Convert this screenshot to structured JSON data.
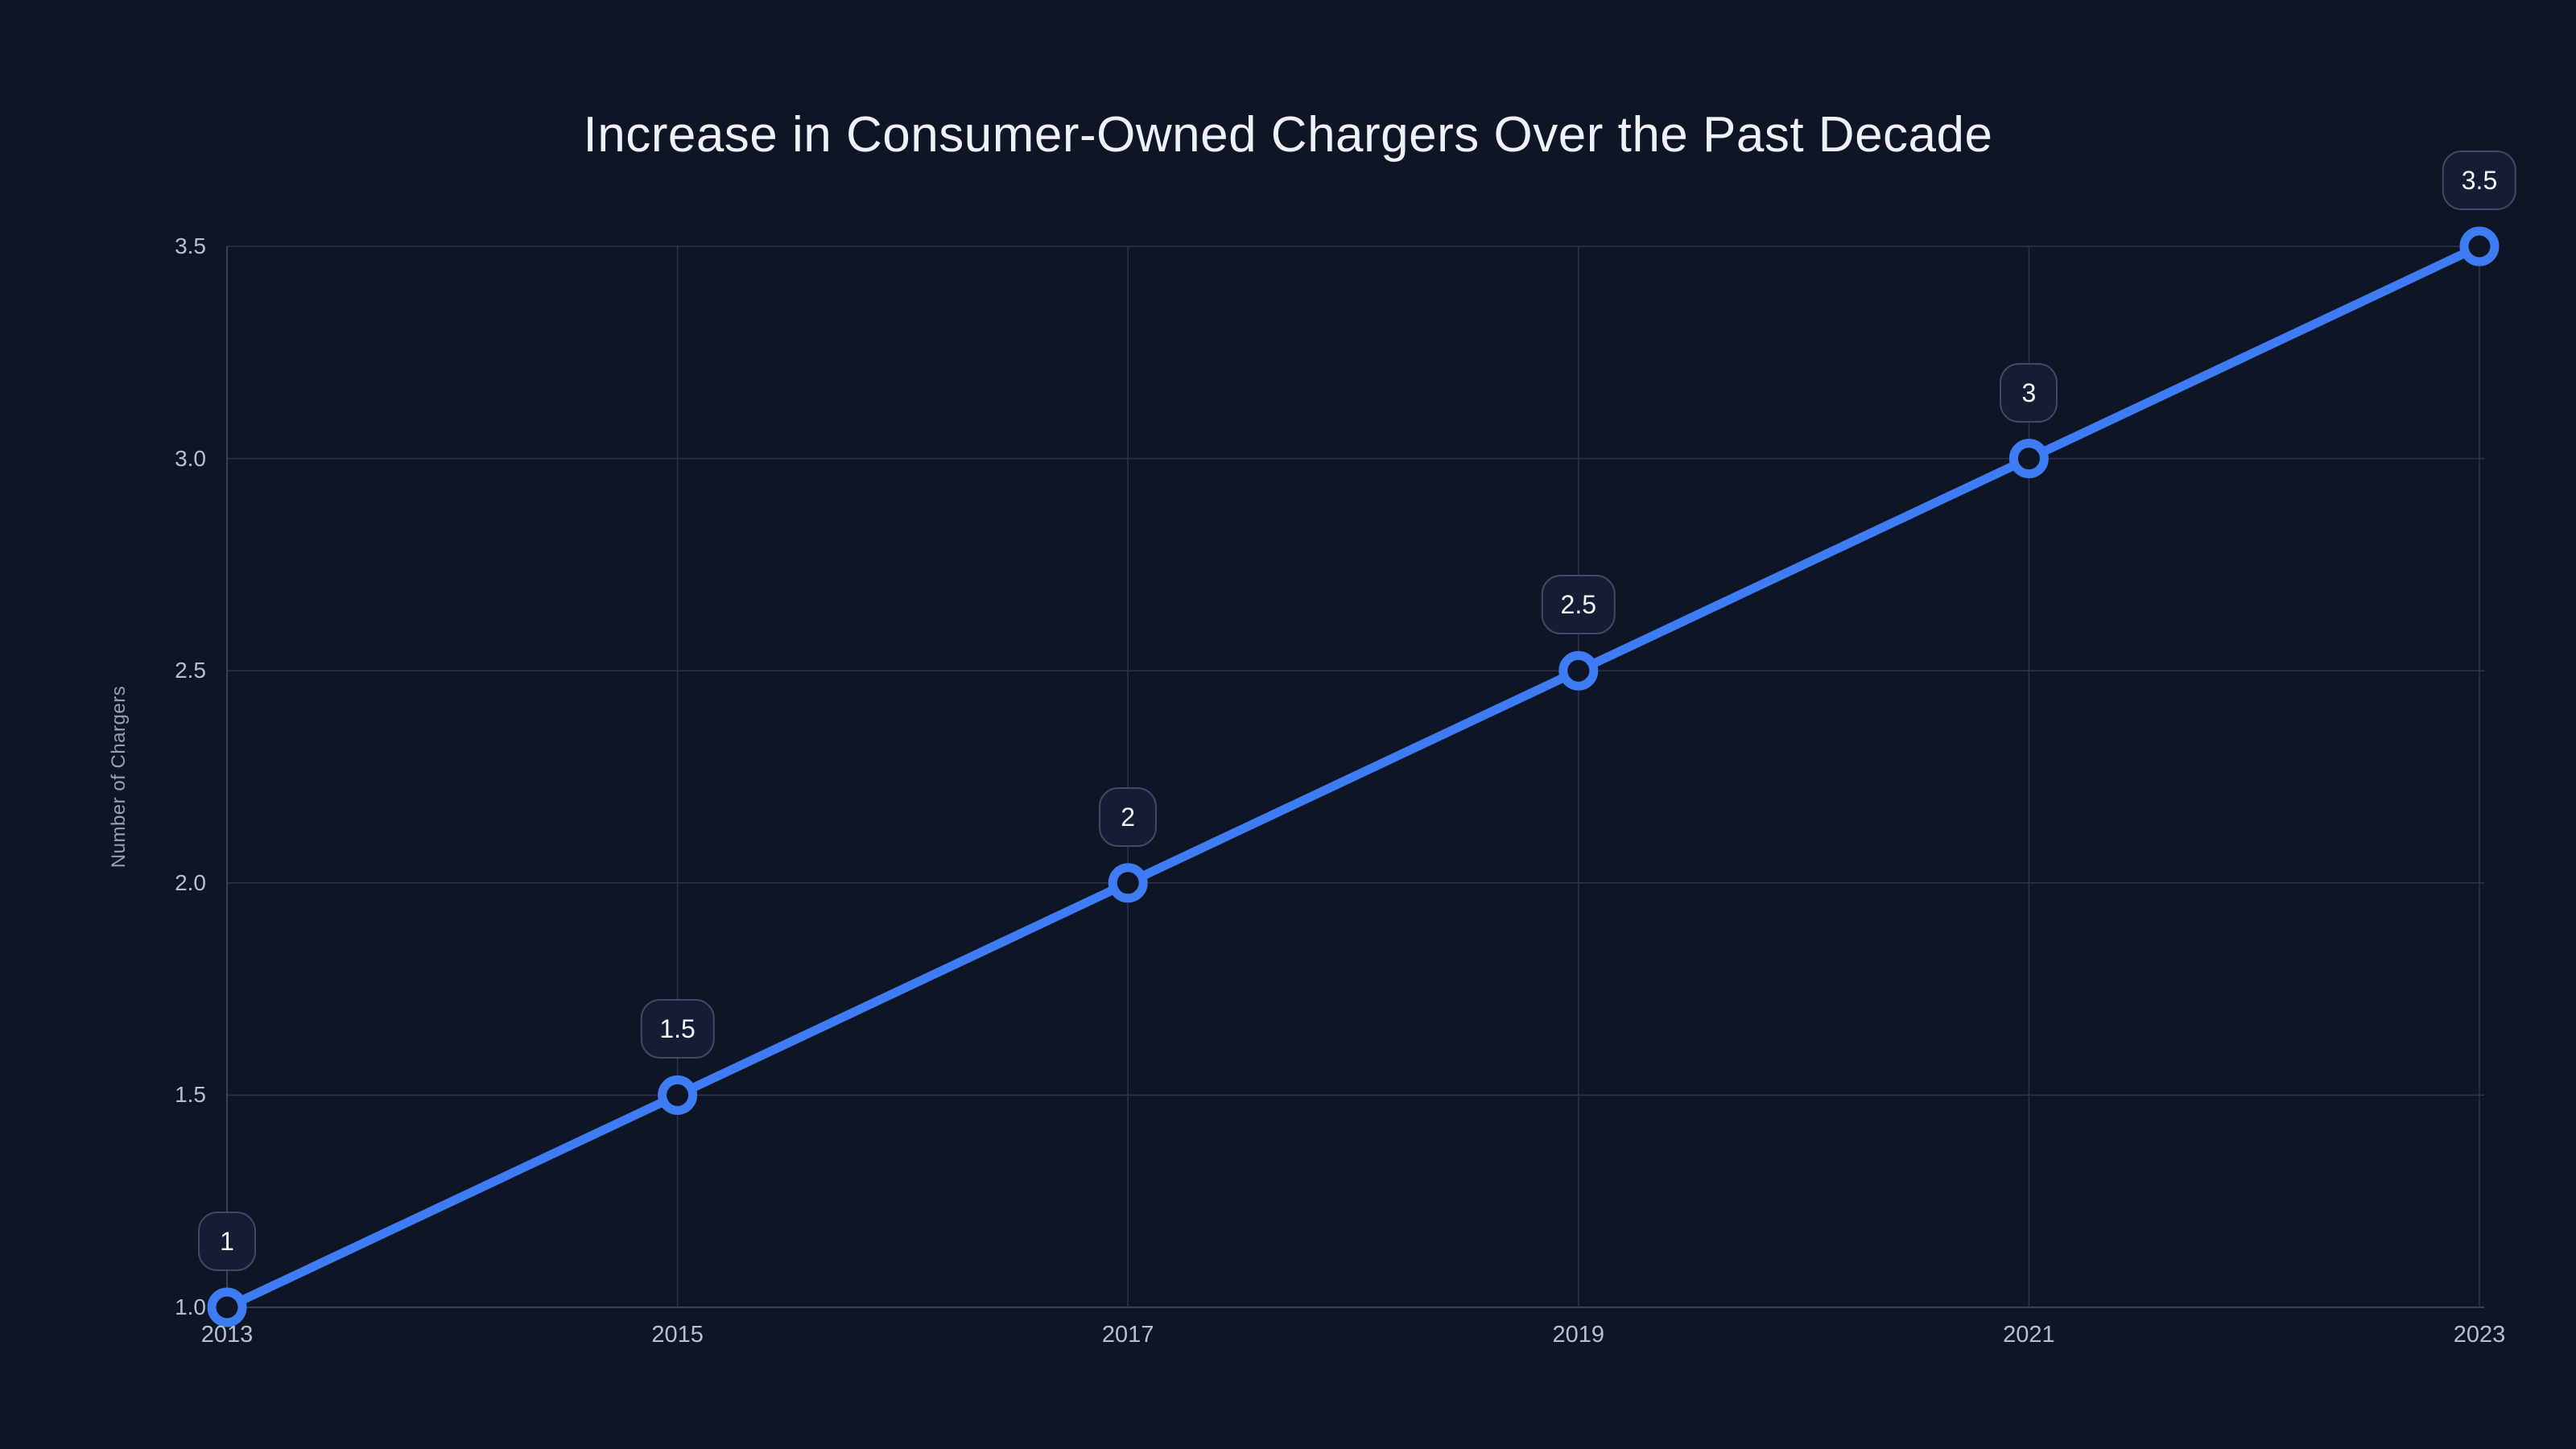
{
  "title": "Increase in Consumer-Owned Chargers Over the Past Decade",
  "y_axis_title": "Number of Chargers",
  "colors": {
    "background": "#0e1626",
    "line": "#3e7cf5",
    "marker_fill": "#0e1626",
    "grid": "#2a344a",
    "axis_line": "#36415a",
    "tick_text": "#b4bfd2",
    "axis_title": "#93a0b6",
    "title_text": "#eef2f8",
    "label_box_bg": "#141d33",
    "label_box_border": "#3e4a63",
    "label_text": "#f4f7fc"
  },
  "chart_data": {
    "type": "line",
    "title": "Increase in Consumer-Owned Chargers Over the Past Decade",
    "xlabel": "",
    "ylabel": "Number of Chargers",
    "x": [
      2013,
      2015,
      2017,
      2019,
      2021,
      2023
    ],
    "values": [
      1,
      1.5,
      2,
      2.5,
      3,
      3.5
    ],
    "point_labels": [
      "1",
      "1.5",
      "2",
      "2.5",
      "3",
      "3.5"
    ],
    "x_tick_labels": [
      "2013",
      "2015",
      "2017",
      "2019",
      "2021",
      "2023"
    ],
    "y_tick_values": [
      1,
      1.5,
      2,
      2.5,
      3,
      3.5
    ],
    "y_tick_labels": [
      "1.0",
      "1.5",
      "2.0",
      "2.5",
      "3.0",
      "3.5"
    ],
    "xlim": [
      2013,
      2023
    ],
    "ylim": [
      1,
      3.5
    ],
    "grid": true,
    "legend_position": "none",
    "series_name": "Number of Chargers"
  }
}
